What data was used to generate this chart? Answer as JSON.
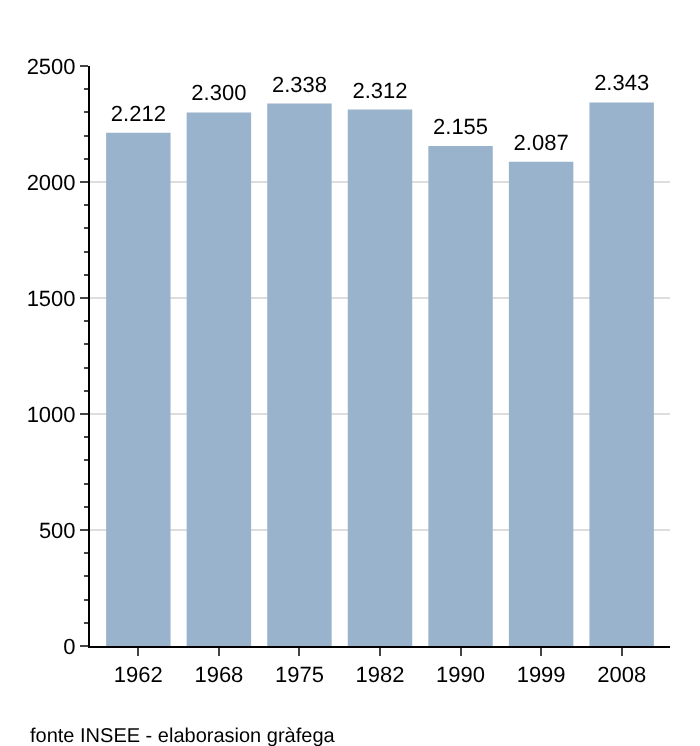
{
  "chart_data": {
    "type": "bar",
    "categories": [
      "1962",
      "1968",
      "1975",
      "1982",
      "1990",
      "1999",
      "2008"
    ],
    "values": [
      2212,
      2300,
      2338,
      2312,
      2155,
      2087,
      2343
    ],
    "value_labels": [
      "2.212",
      "2.300",
      "2.338",
      "2.312",
      "2.155",
      "2.087",
      "2.343"
    ],
    "color": "#9ab3cc",
    "ylim": [
      0,
      2500
    ],
    "yticks": [
      0,
      500,
      1000,
      1500,
      2000,
      2500
    ],
    "grid": "y",
    "annotations": [
      "fonte INSEE - elaborasion gràfega"
    ]
  }
}
